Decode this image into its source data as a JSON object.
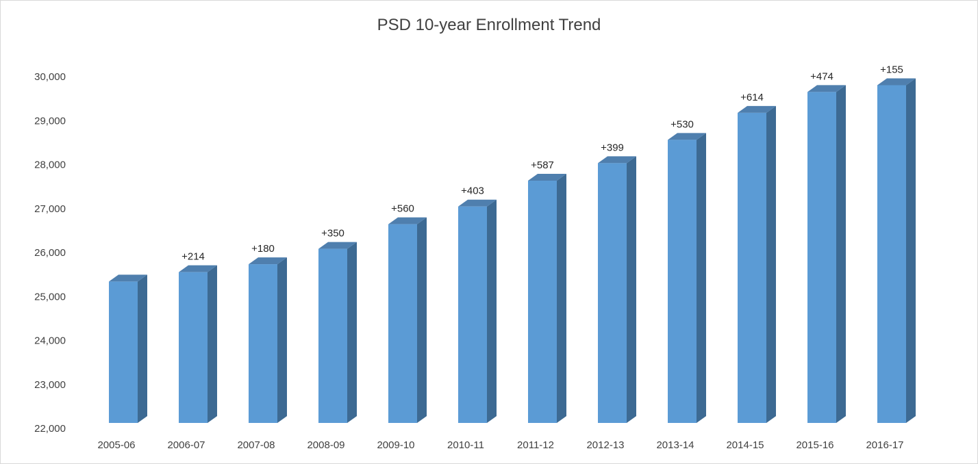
{
  "chart_data": {
    "type": "bar",
    "title": "PSD 10-year Enrollment Trend",
    "xlabel": "",
    "ylabel": "",
    "categories": [
      "2005-06",
      "2006-07",
      "2007-08",
      "2008-09",
      "2009-10",
      "2010-11",
      "2011-12",
      "2012-13",
      "2013-14",
      "2014-15",
      "2015-16",
      "2016-17"
    ],
    "values": [
      25340,
      25554,
      25734,
      26084,
      26644,
      27047,
      27634,
      28033,
      28563,
      29177,
      29651,
      29806
    ],
    "data_labels": [
      "",
      "+214",
      "+180",
      "+350",
      "+560",
      "+403",
      "+587",
      "+399",
      "+530",
      "+614",
      "+474",
      "+155"
    ],
    "ylim": [
      22000,
      30000
    ],
    "y_ticks": [
      22000,
      23000,
      24000,
      25000,
      26000,
      27000,
      28000,
      29000,
      30000
    ],
    "y_tick_labels": [
      "22,000",
      "23,000",
      "24,000",
      "25,000",
      "26,000",
      "27,000",
      "28,000",
      "29,000",
      "30,000"
    ],
    "grid": false,
    "legend": "none",
    "style": "3d-column",
    "colors": {
      "front": "#5b9bd5",
      "side": "#3d6a93",
      "top": "#4f7fae"
    }
  }
}
